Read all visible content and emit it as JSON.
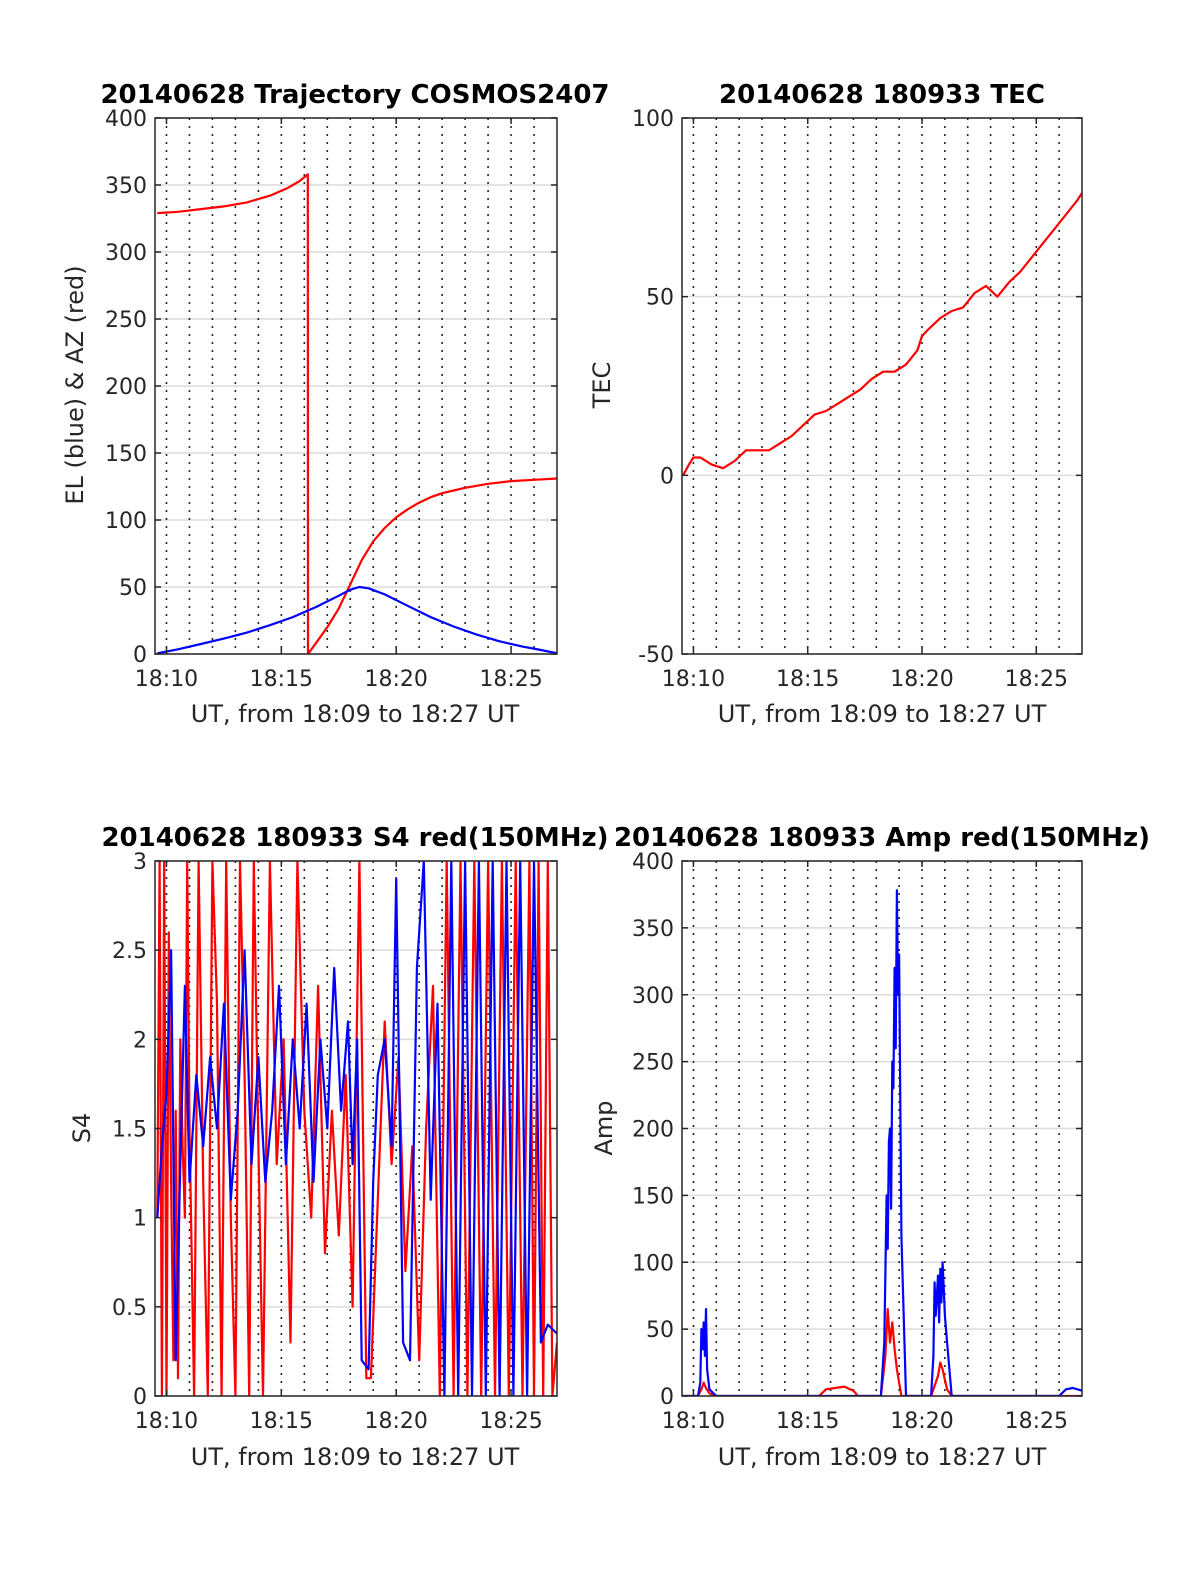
{
  "chart_data": [
    {
      "type": "line",
      "title": "20140628 Trajectory COSMOS2407",
      "xlabel": "UT, from 18:09 to 18:27 UT",
      "ylabel": "EL (blue) & AZ (red)",
      "xlim": [
        9.5,
        27
      ],
      "ylim": [
        0,
        400
      ],
      "xticks": [
        10,
        15,
        20,
        25
      ],
      "xticklabels": [
        "18:10",
        "18:15",
        "18:20",
        "18:25"
      ],
      "yticks": [
        0,
        50,
        100,
        150,
        200,
        250,
        300,
        350,
        400
      ],
      "yticklabels": [
        "0",
        "50",
        "100",
        "150",
        "200",
        "250",
        "300",
        "350",
        "400"
      ],
      "xgrid_minutes": [
        10,
        11,
        12,
        13,
        14,
        15,
        16,
        17,
        18,
        19,
        20,
        21,
        22,
        23,
        24,
        25,
        26
      ],
      "series": [
        {
          "color": "#ff0000",
          "x": [
            9.6,
            10.5,
            11.5,
            12.5,
            13.5,
            14.5,
            15.3,
            15.8,
            16.15,
            16.16,
            16.5,
            17.0,
            17.5,
            18.0,
            18.5,
            19.0,
            19.5,
            20.0,
            20.5,
            21.0,
            21.5,
            22.0,
            22.5,
            23.0,
            24.0,
            25.0,
            26.0,
            27.0
          ],
          "y": [
            329,
            330,
            332,
            334,
            337,
            342,
            348,
            353,
            358,
            0,
            8,
            20,
            34,
            52,
            70,
            84,
            94,
            102,
            108,
            113,
            117,
            120,
            122,
            124,
            127,
            129,
            130,
            131
          ]
        },
        {
          "color": "#0000ff",
          "x": [
            9.6,
            10.5,
            11.5,
            12.5,
            13.5,
            14.5,
            15.5,
            16.5,
            17.5,
            18.0,
            18.4,
            18.8,
            19.5,
            20.5,
            21.5,
            22.5,
            23.5,
            24.5,
            25.5,
            26.3,
            27.0
          ],
          "y": [
            0.5,
            3.5,
            7.5,
            11.5,
            16,
            21.5,
            27.5,
            35,
            43.5,
            48,
            50,
            49,
            44.5,
            36,
            27.5,
            20.5,
            14.5,
            9.5,
            5.5,
            3,
            0.5
          ]
        }
      ]
    },
    {
      "type": "line",
      "title": "20140628 180933 TEC",
      "xlabel": "UT, from 18:09 to 18:27 UT",
      "ylabel": "TEC",
      "xlim": [
        9.5,
        27
      ],
      "ylim": [
        -50,
        100
      ],
      "xticks": [
        10,
        15,
        20,
        25
      ],
      "xticklabels": [
        "18:10",
        "18:15",
        "18:20",
        "18:25"
      ],
      "yticks": [
        -50,
        0,
        50,
        100
      ],
      "yticklabels": [
        "-50",
        "0",
        "50",
        "100"
      ],
      "xgrid_minutes": [
        10,
        11,
        12,
        13,
        14,
        15,
        16,
        17,
        18,
        19,
        20,
        21,
        22,
        23,
        24,
        25,
        26
      ],
      "series": [
        {
          "color": "#ff0000",
          "x": [
            9.55,
            9.8,
            10.0,
            10.3,
            10.8,
            11.3,
            11.8,
            12.3,
            12.8,
            13.3,
            13.8,
            14.3,
            14.8,
            15.3,
            15.8,
            16.3,
            16.8,
            17.3,
            17.8,
            18.3,
            18.8,
            19.3,
            19.8,
            20.0,
            20.3,
            20.8,
            21.3,
            21.8,
            22.3,
            22.8,
            23.3,
            23.8,
            24.3,
            24.8,
            25.3,
            25.8,
            26.3,
            26.8,
            27.0
          ],
          "y": [
            0,
            3,
            5,
            5,
            3,
            2,
            4,
            7,
            7,
            7,
            9,
            11,
            14,
            17,
            18,
            20,
            22,
            24,
            27,
            29,
            29,
            31,
            35,
            39,
            41,
            44,
            46,
            47,
            51,
            53,
            50,
            54,
            57,
            61,
            65,
            69,
            73,
            77,
            79
          ]
        }
      ]
    },
    {
      "type": "line",
      "title": "20140628 180933 S4 red(150MHz)",
      "xlabel": "UT, from 18:09 to 18:27 UT",
      "ylabel": "S4",
      "xlim": [
        9.5,
        27
      ],
      "ylim": [
        0,
        3
      ],
      "xticks": [
        10,
        15,
        20,
        25
      ],
      "xticklabels": [
        "18:10",
        "18:15",
        "18:20",
        "18:25"
      ],
      "yticks": [
        0,
        0.5,
        1,
        1.5,
        2,
        2.5,
        3
      ],
      "yticklabels": [
        "0",
        "0.5",
        "1",
        "1.5",
        "2",
        "2.5",
        "3"
      ],
      "xgrid_minutes": [
        10,
        11,
        12,
        13,
        14,
        15,
        16,
        17,
        18,
        19,
        20,
        21,
        22,
        23,
        24,
        25,
        26
      ],
      "series": [
        {
          "color": "#ff0000",
          "x": [
            9.6,
            9.7,
            9.8,
            9.9,
            10.0,
            10.1,
            10.2,
            10.3,
            10.4,
            10.5,
            10.6,
            10.7,
            10.8,
            10.9,
            11.0,
            11.2,
            11.4,
            11.6,
            11.8,
            12.0,
            12.2,
            12.4,
            12.6,
            12.8,
            13.0,
            13.2,
            13.4,
            13.6,
            13.8,
            14.0,
            14.2,
            14.5,
            14.8,
            15.1,
            15.4,
            15.7,
            16.0,
            16.3,
            16.6,
            16.9,
            17.2,
            17.5,
            17.8,
            18.1,
            18.4,
            18.7,
            18.9,
            19.2,
            19.5,
            19.8,
            20.1,
            20.4,
            20.7,
            21.0,
            21.3,
            21.6,
            21.9,
            22.2,
            22.5,
            22.8,
            23.1,
            23.4,
            23.7,
            24.0,
            24.3,
            24.6,
            24.9,
            25.2,
            25.5,
            25.8,
            26.0,
            26.2,
            26.4,
            26.6,
            26.8,
            27.0
          ],
          "y": [
            1.0,
            3.0,
            0.0,
            3.0,
            0.0,
            2.6,
            1.2,
            0.2,
            1.6,
            0.1,
            2.0,
            1.4,
            1.0,
            3.0,
            1.5,
            0.0,
            3.0,
            1.2,
            0.0,
            3.0,
            2.2,
            0.0,
            3.0,
            1.0,
            0.0,
            3.0,
            1.8,
            0.0,
            3.0,
            1.4,
            0.0,
            3.0,
            1.3,
            2.0,
            0.3,
            3.0,
            1.6,
            1.0,
            2.3,
            0.8,
            1.6,
            0.9,
            1.8,
            0.5,
            3.0,
            0.1,
            0.1,
            1.1,
            2.1,
            1.3,
            1.9,
            0.7,
            1.4,
            0.2,
            1.5,
            2.3,
            0.0,
            3.0,
            0.0,
            3.0,
            0.0,
            3.0,
            0.0,
            3.0,
            0.0,
            3.0,
            0.0,
            3.0,
            0.0,
            3.0,
            0.0,
            3.0,
            0.0,
            3.0,
            0.0,
            0.3
          ]
        },
        {
          "color": "#0000ff",
          "x": [
            9.6,
            9.8,
            10.0,
            10.2,
            10.4,
            10.6,
            10.8,
            11.0,
            11.3,
            11.6,
            11.9,
            12.2,
            12.5,
            12.8,
            13.1,
            13.4,
            13.7,
            14.0,
            14.3,
            14.6,
            14.9,
            15.2,
            15.5,
            15.8,
            16.1,
            16.4,
            16.7,
            17.0,
            17.3,
            17.6,
            17.9,
            18.1,
            18.3,
            18.5,
            18.8,
            19.0,
            19.2,
            19.5,
            19.8,
            20.0,
            20.3,
            20.6,
            20.9,
            21.2,
            21.5,
            21.8,
            22.1,
            22.4,
            22.7,
            23.0,
            23.3,
            23.6,
            23.9,
            24.2,
            24.5,
            24.8,
            25.1,
            25.4,
            25.7,
            26.0,
            26.3,
            26.6,
            27.0
          ],
          "y": [
            1.0,
            1.4,
            1.7,
            2.5,
            0.2,
            1.3,
            2.3,
            1.2,
            1.8,
            1.4,
            1.9,
            1.5,
            2.2,
            1.1,
            1.6,
            2.5,
            1.3,
            1.9,
            1.2,
            1.6,
            2.3,
            1.3,
            2.0,
            1.5,
            2.2,
            1.2,
            2.0,
            1.5,
            2.4,
            1.6,
            2.1,
            1.3,
            2.0,
            0.2,
            0.15,
            1.2,
            1.8,
            2.0,
            1.4,
            2.9,
            0.3,
            0.2,
            2.4,
            3.0,
            1.1,
            2.2,
            0.0,
            3.0,
            0.0,
            3.0,
            0.0,
            3.0,
            0.0,
            3.0,
            0.0,
            3.0,
            0.0,
            3.0,
            0.0,
            3.0,
            0.3,
            0.4,
            0.35
          ]
        }
      ]
    },
    {
      "type": "line",
      "title": "20140628 180933 Amp red(150MHz)",
      "xlabel": "UT, from 18:09 to 18:27 UT",
      "ylabel": "Amp",
      "xlim": [
        9.5,
        27
      ],
      "ylim": [
        0,
        400
      ],
      "xticks": [
        10,
        15,
        20,
        25
      ],
      "xticklabels": [
        "18:10",
        "18:15",
        "18:20",
        "18:25"
      ],
      "yticks": [
        0,
        50,
        100,
        150,
        200,
        250,
        300,
        350,
        400
      ],
      "yticklabels": [
        "0",
        "50",
        "100",
        "150",
        "200",
        "250",
        "300",
        "350",
        "400"
      ],
      "xgrid_minutes": [
        10,
        11,
        12,
        13,
        14,
        15,
        16,
        17,
        18,
        19,
        20,
        21,
        22,
        23,
        24,
        25,
        26
      ],
      "series": [
        {
          "color": "#ff0000",
          "x": [
            9.5,
            10.2,
            10.35,
            10.45,
            10.55,
            10.7,
            11.0,
            15.5,
            15.8,
            16.2,
            16.6,
            17.0,
            17.2,
            18.2,
            18.4,
            18.5,
            18.6,
            18.7,
            18.8,
            18.9,
            19.1,
            20.4,
            20.6,
            20.7,
            20.8,
            20.9,
            21.0,
            21.1,
            21.3,
            27.0
          ],
          "y": [
            0,
            0,
            5,
            10,
            6,
            2,
            0,
            0,
            5,
            6,
            7,
            4,
            0,
            0,
            30,
            65,
            40,
            55,
            35,
            20,
            0,
            0,
            10,
            15,
            25,
            20,
            12,
            5,
            0,
            0
          ]
        },
        {
          "color": "#0000ff",
          "x": [
            9.5,
            10.2,
            10.3,
            10.35,
            10.4,
            10.45,
            10.5,
            10.55,
            10.6,
            10.7,
            11.0,
            18.2,
            18.35,
            18.45,
            18.5,
            18.55,
            18.6,
            18.65,
            18.7,
            18.75,
            18.8,
            18.85,
            18.9,
            18.95,
            19.0,
            19.1,
            19.3,
            20.4,
            20.5,
            20.55,
            20.6,
            20.7,
            20.75,
            20.8,
            20.85,
            20.9,
            21.0,
            21.1,
            21.2,
            21.3,
            26.0,
            26.3,
            26.6,
            27.0
          ],
          "y": [
            0,
            0,
            10,
            50,
            35,
            55,
            30,
            65,
            20,
            5,
            0,
            0,
            40,
            150,
            110,
            190,
            200,
            140,
            250,
            230,
            320,
            260,
            378,
            300,
            330,
            120,
            0,
            0,
            30,
            85,
            60,
            90,
            55,
            95,
            70,
            100,
            60,
            40,
            20,
            0,
            0,
            5,
            6,
            4
          ]
        }
      ]
    }
  ]
}
